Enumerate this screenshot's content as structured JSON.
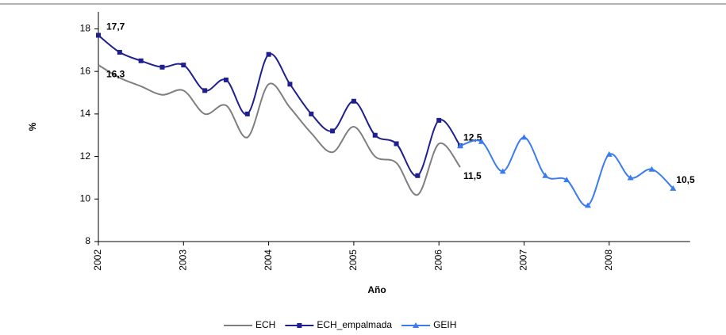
{
  "chart_data": {
    "type": "line",
    "x_label": "Año",
    "y_label": "%",
    "x": [
      2002,
      2002.25,
      2002.5,
      2002.75,
      2003,
      2003.25,
      2003.5,
      2003.75,
      2004,
      2004.25,
      2004.5,
      2004.75,
      2005,
      2005.25,
      2005.5,
      2005.75,
      2006,
      2006.25,
      2006.5,
      2006.75,
      2007,
      2007.25,
      2007.5,
      2007.75,
      2008,
      2008.25,
      2008.5,
      2008.75
    ],
    "series": [
      {
        "name": "ECH",
        "color": "#7f7f7f",
        "marker": "none",
        "values": [
          16.3,
          15.7,
          15.3,
          14.9,
          15.1,
          14.0,
          14.4,
          12.9,
          15.4,
          14.3,
          13.1,
          12.2,
          13.4,
          12.0,
          11.7,
          10.2,
          12.6,
          11.5,
          null,
          null,
          null,
          null,
          null,
          null,
          null,
          null,
          null,
          null
        ],
        "value_labels": [
          "16,3",
          null,
          null,
          null,
          null,
          null,
          null,
          null,
          null,
          null,
          null,
          null,
          null,
          null,
          null,
          null,
          null,
          "11,5",
          null,
          null,
          null,
          null,
          null,
          null,
          null,
          null,
          null,
          null
        ]
      },
      {
        "name": "ECH_empalmada",
        "color": "#1f1f8f",
        "marker": "square",
        "values": [
          17.7,
          16.9,
          16.5,
          16.2,
          16.3,
          15.1,
          15.6,
          14.0,
          16.8,
          15.4,
          14.0,
          13.2,
          14.6,
          13.0,
          12.6,
          11.1,
          13.7,
          12.5,
          null,
          null,
          null,
          null,
          null,
          null,
          null,
          null,
          null,
          null
        ],
        "value_labels": [
          "17,7",
          null,
          null,
          null,
          null,
          null,
          null,
          null,
          null,
          null,
          null,
          null,
          null,
          null,
          null,
          null,
          null,
          "12,5",
          null,
          null,
          null,
          null,
          null,
          null,
          null,
          null,
          null,
          null
        ]
      },
      {
        "name": "GEIH",
        "color": "#3a7cf0",
        "marker": "triangle",
        "values": [
          null,
          null,
          null,
          null,
          null,
          null,
          null,
          null,
          null,
          null,
          null,
          null,
          null,
          null,
          null,
          null,
          null,
          12.5,
          12.7,
          11.3,
          12.9,
          11.1,
          10.9,
          9.7,
          12.1,
          11.0,
          11.4,
          10.5
        ],
        "value_labels": [
          null,
          null,
          null,
          null,
          null,
          null,
          null,
          null,
          null,
          null,
          null,
          null,
          null,
          null,
          null,
          null,
          null,
          null,
          null,
          null,
          null,
          null,
          null,
          null,
          null,
          null,
          null,
          "10,5"
        ]
      }
    ],
    "xlim": [
      2002,
      2008.95
    ],
    "xticks": [
      2002,
      2003,
      2004,
      2005,
      2006,
      2007,
      2008
    ],
    "ylim": [
      8,
      18.8
    ],
    "yticks": [
      8,
      10,
      12,
      14,
      16,
      18
    ],
    "grid": false,
    "legend": "bottom"
  }
}
